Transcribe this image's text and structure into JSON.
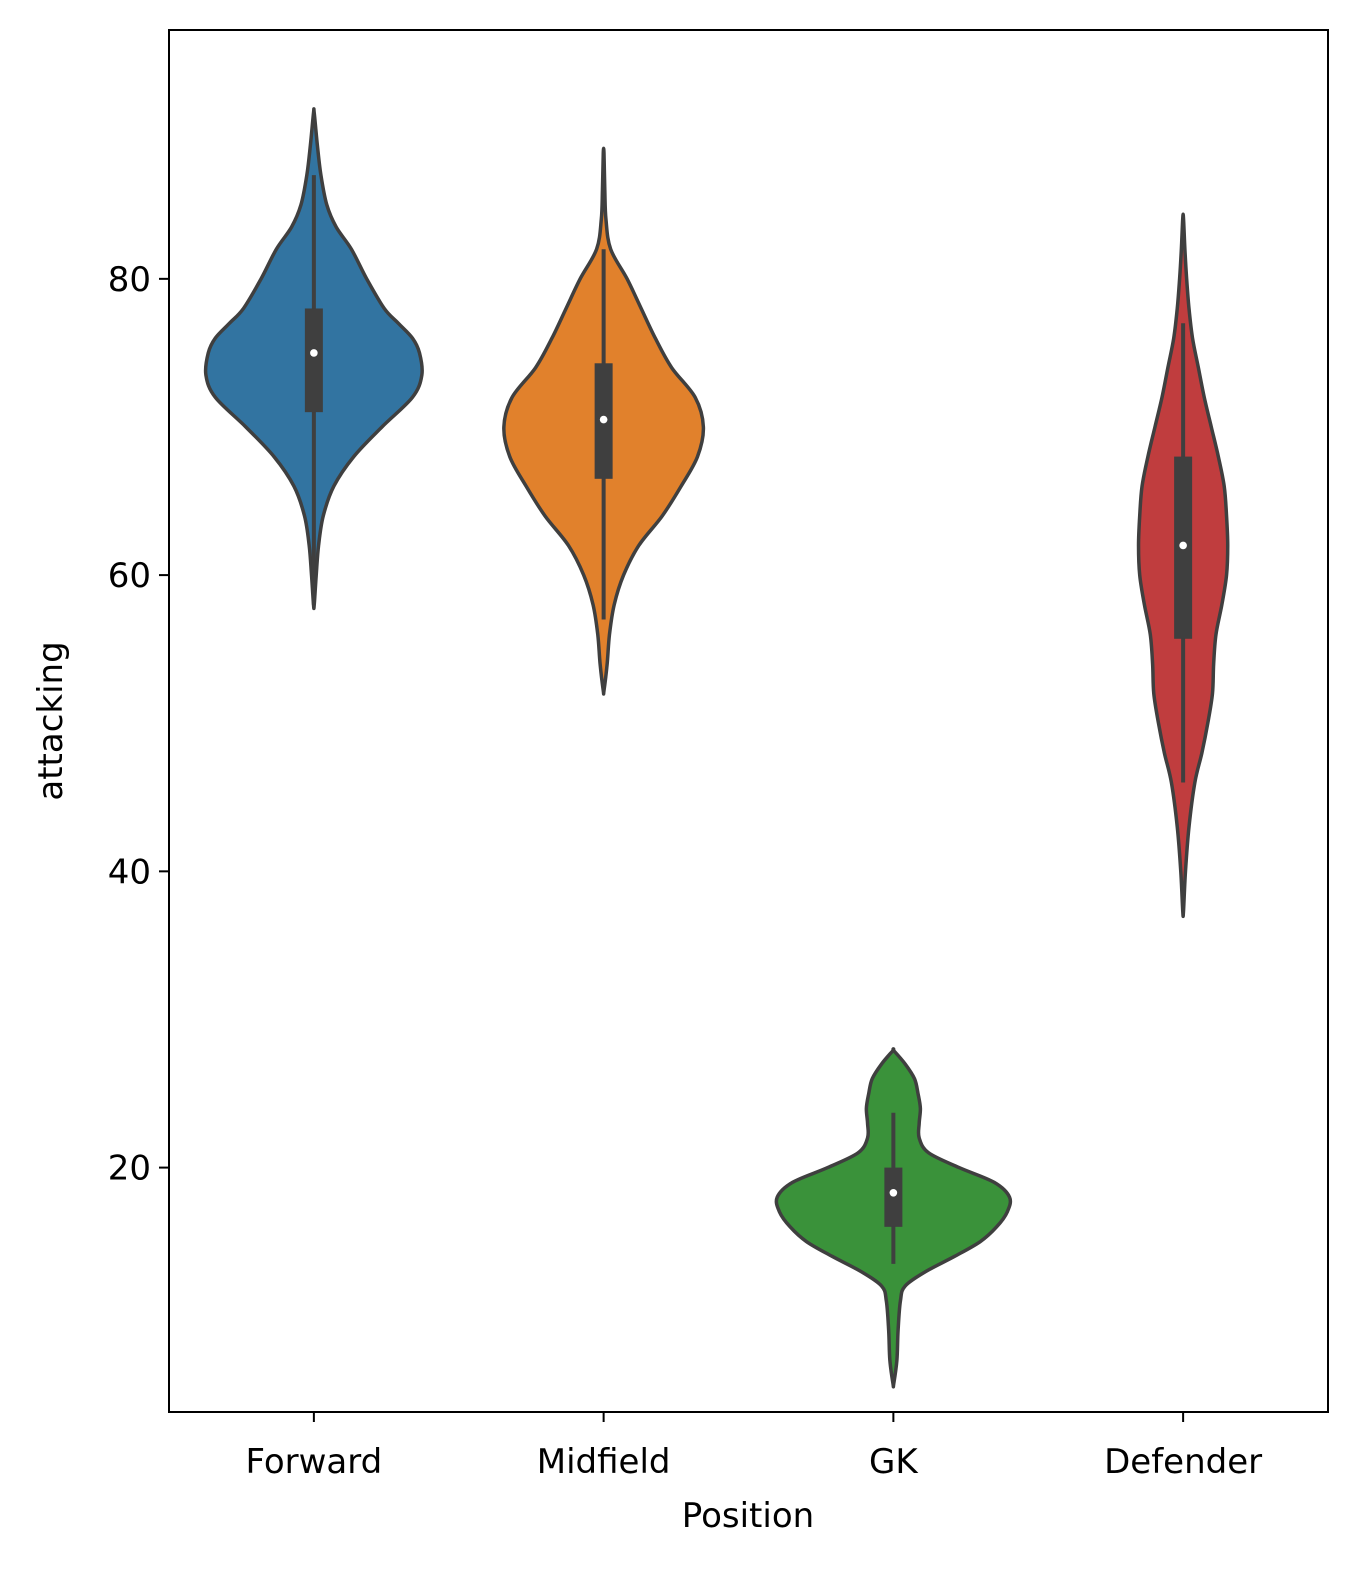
{
  "chart_data": {
    "type": "violin",
    "xlabel": "Position",
    "ylabel": "attacking",
    "categories": [
      "Forward",
      "Midfield",
      "GK",
      "Defender"
    ],
    "ylim": [
      3.5,
      96.8
    ],
    "yticks": [
      20,
      40,
      60,
      80
    ],
    "grid": false,
    "legend": "none",
    "series": [
      {
        "category": "Forward",
        "color": "#3274a1",
        "min": 58,
        "q1": 71,
        "median": 75,
        "q3": 78,
        "max": 87,
        "kde_min": 58,
        "kde_max": 91.2,
        "profile": [
          [
            58,
            0.003
          ],
          [
            60,
            0.02
          ],
          [
            62,
            0.04
          ],
          [
            64,
            0.08
          ],
          [
            66,
            0.17
          ],
          [
            68,
            0.34
          ],
          [
            70,
            0.58
          ],
          [
            72,
            0.84
          ],
          [
            73.5,
            0.92
          ],
          [
            75,
            0.9
          ],
          [
            76,
            0.84
          ],
          [
            77,
            0.72
          ],
          [
            78,
            0.6
          ],
          [
            80,
            0.45
          ],
          [
            82,
            0.32
          ],
          [
            83.5,
            0.19
          ],
          [
            85,
            0.11
          ],
          [
            87,
            0.06
          ],
          [
            89,
            0.03
          ],
          [
            91.2,
            0.003
          ]
        ]
      },
      {
        "category": "Midfield",
        "color": "#e1812c",
        "min": 57,
        "q1": 66.5,
        "median": 70.5,
        "q3": 74.3,
        "max": 82,
        "kde_min": 52.2,
        "kde_max": 88.5,
        "profile": [
          [
            52.2,
            0.003
          ],
          [
            54,
            0.03
          ],
          [
            56,
            0.05
          ],
          [
            58,
            0.09
          ],
          [
            60,
            0.17
          ],
          [
            62,
            0.3
          ],
          [
            64,
            0.5
          ],
          [
            66,
            0.66
          ],
          [
            68,
            0.8
          ],
          [
            70,
            0.85
          ],
          [
            72,
            0.78
          ],
          [
            74,
            0.58
          ],
          [
            76,
            0.44
          ],
          [
            78,
            0.32
          ],
          [
            80,
            0.2
          ],
          [
            82,
            0.06
          ],
          [
            84,
            0.02
          ],
          [
            86,
            0.01
          ],
          [
            88.5,
            0.003
          ]
        ]
      },
      {
        "category": "GK",
        "color": "#3a923a",
        "min": 13.5,
        "q1": 16,
        "median": 18.3,
        "q3": 20,
        "max": 23.7,
        "kde_min": 5.4,
        "kde_max": 27.9,
        "profile": [
          [
            5.4,
            0.003
          ],
          [
            7,
            0.03
          ],
          [
            9,
            0.04
          ],
          [
            11,
            0.06
          ],
          [
            12,
            0.1
          ],
          [
            13,
            0.28
          ],
          [
            14,
            0.52
          ],
          [
            15,
            0.74
          ],
          [
            16,
            0.88
          ],
          [
            17,
            0.97
          ],
          [
            18,
            0.99
          ],
          [
            19,
            0.86
          ],
          [
            20,
            0.56
          ],
          [
            21,
            0.3
          ],
          [
            22,
            0.22
          ],
          [
            23,
            0.22
          ],
          [
            24,
            0.23
          ],
          [
            25,
            0.21
          ],
          [
            26,
            0.18
          ],
          [
            27,
            0.1
          ],
          [
            27.9,
            0.003
          ]
        ]
      },
      {
        "category": "Defender",
        "color": "#c03d3e",
        "min": 46,
        "q1": 55.7,
        "median": 62,
        "q3": 68,
        "max": 77,
        "kde_min": 37.3,
        "kde_max": 84.1,
        "profile": [
          [
            37.3,
            0.003
          ],
          [
            40,
            0.02
          ],
          [
            43,
            0.05
          ],
          [
            46,
            0.1
          ],
          [
            48,
            0.16
          ],
          [
            50,
            0.21
          ],
          [
            52,
            0.25
          ],
          [
            54,
            0.26
          ],
          [
            56,
            0.28
          ],
          [
            58,
            0.33
          ],
          [
            60,
            0.37
          ],
          [
            62,
            0.38
          ],
          [
            64,
            0.37
          ],
          [
            66,
            0.35
          ],
          [
            68,
            0.3
          ],
          [
            70,
            0.24
          ],
          [
            72,
            0.18
          ],
          [
            74,
            0.13
          ],
          [
            76,
            0.08
          ],
          [
            78,
            0.05
          ],
          [
            80,
            0.03
          ],
          [
            82,
            0.015
          ],
          [
            84.1,
            0.003
          ]
        ]
      }
    ]
  }
}
